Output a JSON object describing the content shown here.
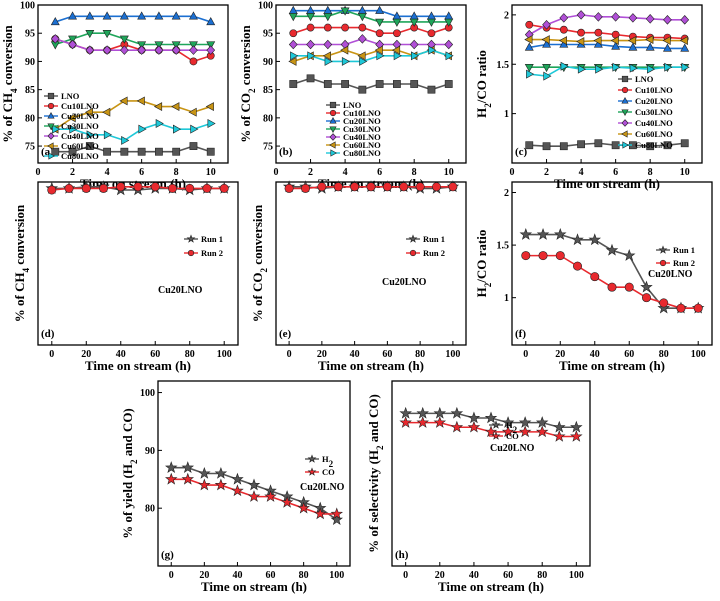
{
  "chart_data": [
    {
      "id": "a",
      "type": "line",
      "title": "",
      "panel_letter": "(a)",
      "xlabel": "Time on stream (h)",
      "ylabel": "% of CH4 conversion",
      "xlim": [
        0,
        11
      ],
      "ylim": [
        72,
        100
      ],
      "xticks": [
        0,
        2,
        4,
        6,
        8,
        10
      ],
      "yticks": [
        75,
        80,
        85,
        90,
        95,
        100
      ],
      "legend_pos": "bottom-left",
      "annotation": "",
      "series": [
        {
          "name": "LNO",
          "color": "#555555",
          "marker": "square",
          "x": [
            1,
            2,
            3,
            4,
            5,
            6,
            7,
            8,
            9,
            10
          ],
          "values": [
            74,
            74,
            75,
            74,
            74,
            74,
            74,
            74,
            75,
            74
          ]
        },
        {
          "name": "Cu10LNO",
          "color": "#e8292e",
          "marker": "circle",
          "x": [
            1,
            2,
            3,
            4,
            5,
            6,
            7,
            8,
            9,
            10
          ],
          "values": [
            94,
            93,
            92,
            92,
            93,
            92,
            92,
            92,
            90,
            91
          ]
        },
        {
          "name": "Cu20LNO",
          "color": "#1b6fd1",
          "marker": "triangle-up",
          "x": [
            1,
            2,
            3,
            4,
            5,
            6,
            7,
            8,
            9,
            10
          ],
          "values": [
            97,
            98,
            98,
            98,
            98,
            98,
            98,
            98,
            98,
            97
          ]
        },
        {
          "name": "Cu30LNO",
          "color": "#1fa55a",
          "marker": "triangle-down",
          "x": [
            1,
            2,
            3,
            4,
            5,
            6,
            7,
            8,
            9,
            10
          ],
          "values": [
            93,
            94,
            95,
            95,
            94,
            93,
            93,
            93,
            93,
            93
          ]
        },
        {
          "name": "Cu40LNO",
          "color": "#b04fd6",
          "marker": "diamond",
          "x": [
            1,
            2,
            3,
            4,
            5,
            6,
            7,
            8,
            9,
            10
          ],
          "values": [
            94,
            93,
            92,
            92,
            92,
            92,
            92,
            92,
            92,
            92
          ]
        },
        {
          "name": "Cu60LNO",
          "color": "#c89414",
          "marker": "triangle-left",
          "x": [
            1,
            2,
            3,
            4,
            5,
            6,
            7,
            8,
            9,
            10
          ],
          "values": [
            78,
            80,
            81,
            81,
            83,
            83,
            82,
            82,
            81,
            82
          ]
        },
        {
          "name": "Cu80LNO",
          "color": "#1ec8d8",
          "marker": "triangle-right",
          "x": [
            1,
            2,
            3,
            4,
            5,
            6,
            7,
            8,
            9,
            10
          ],
          "values": [
            78,
            78,
            77,
            77,
            76,
            78,
            79,
            78,
            78,
            79
          ]
        }
      ]
    },
    {
      "id": "b",
      "type": "line",
      "title": "",
      "panel_letter": "(b)",
      "xlabel": "Time on stream (h)",
      "ylabel": "% of CO2 conversion",
      "xlim": [
        0,
        11
      ],
      "ylim": [
        72,
        100
      ],
      "xticks": [
        0,
        2,
        4,
        6,
        8,
        10
      ],
      "yticks": [
        75,
        80,
        85,
        90,
        95,
        100
      ],
      "legend_pos": "bottom-center",
      "annotation": "",
      "series": [
        {
          "name": "LNO",
          "color": "#555555",
          "marker": "square",
          "x": [
            1,
            2,
            3,
            4,
            5,
            6,
            7,
            8,
            9,
            10
          ],
          "values": [
            86,
            87,
            86,
            86,
            85,
            86,
            86,
            86,
            85,
            86
          ]
        },
        {
          "name": "Cu10LNO",
          "color": "#e8292e",
          "marker": "circle",
          "x": [
            1,
            2,
            3,
            4,
            5,
            6,
            7,
            8,
            9,
            10
          ],
          "values": [
            95,
            96,
            96,
            96,
            96,
            95,
            95,
            96,
            95,
            96
          ]
        },
        {
          "name": "Cu20LNO",
          "color": "#1b6fd1",
          "marker": "triangle-up",
          "x": [
            1,
            2,
            3,
            4,
            5,
            6,
            7,
            8,
            9,
            10
          ],
          "values": [
            99,
            99,
            99,
            99,
            99,
            99,
            98,
            98,
            98,
            98
          ]
        },
        {
          "name": "Cu30LNO",
          "color": "#1fa55a",
          "marker": "triangle-down",
          "x": [
            1,
            2,
            3,
            4,
            5,
            6,
            7,
            8,
            9,
            10
          ],
          "values": [
            98,
            98,
            98,
            99,
            98,
            97,
            97,
            97,
            97,
            97
          ]
        },
        {
          "name": "Cu40LNO",
          "color": "#b04fd6",
          "marker": "diamond",
          "x": [
            1,
            2,
            3,
            4,
            5,
            6,
            7,
            8,
            9,
            10
          ],
          "values": [
            93,
            93,
            93,
            93,
            94,
            93,
            93,
            93,
            93,
            93
          ]
        },
        {
          "name": "Cu60LNO",
          "color": "#c89414",
          "marker": "triangle-left",
          "x": [
            1,
            2,
            3,
            4,
            5,
            6,
            7,
            8,
            9,
            10
          ],
          "values": [
            90,
            91,
            91,
            92,
            91,
            92,
            92,
            91,
            92,
            91
          ]
        },
        {
          "name": "Cu80LNO",
          "color": "#1ec8d8",
          "marker": "triangle-right",
          "x": [
            1,
            2,
            3,
            4,
            5,
            6,
            7,
            8,
            9,
            10
          ],
          "values": [
            91,
            91,
            90,
            90,
            90,
            91,
            91,
            91,
            92,
            91
          ]
        }
      ]
    },
    {
      "id": "c",
      "type": "line",
      "title": "",
      "panel_letter": "(c)",
      "xlabel": "Time on stream (h)",
      "ylabel": "H2/CO ratio",
      "xlim": [
        0,
        11
      ],
      "ylim": [
        0.5,
        2.1
      ],
      "xticks": [
        0,
        2,
        4,
        6,
        8,
        10
      ],
      "yticks": [
        1.0,
        1.5,
        2.0
      ],
      "legend_pos": "bottom-center",
      "annotation": "",
      "series": [
        {
          "name": "LNO",
          "color": "#555555",
          "marker": "square",
          "x": [
            1,
            2,
            3,
            4,
            5,
            6,
            7,
            8,
            9,
            10
          ],
          "values": [
            0.68,
            0.67,
            0.67,
            0.69,
            0.7,
            0.68,
            0.68,
            0.67,
            0.68,
            0.7
          ]
        },
        {
          "name": "Cu10LNO",
          "color": "#e8292e",
          "marker": "circle",
          "x": [
            1,
            2,
            3,
            4,
            5,
            6,
            7,
            8,
            9,
            10
          ],
          "values": [
            1.9,
            1.87,
            1.85,
            1.82,
            1.82,
            1.8,
            1.78,
            1.77,
            1.77,
            1.76
          ]
        },
        {
          "name": "Cu20LNO",
          "color": "#1b6fd1",
          "marker": "triangle-up",
          "x": [
            1,
            2,
            3,
            4,
            5,
            6,
            7,
            8,
            9,
            10
          ],
          "values": [
            1.67,
            1.7,
            1.7,
            1.7,
            1.7,
            1.68,
            1.67,
            1.67,
            1.66,
            1.66
          ]
        },
        {
          "name": "Cu30LNO",
          "color": "#1fa55a",
          "marker": "triangle-down",
          "x": [
            1,
            2,
            3,
            4,
            5,
            6,
            7,
            8,
            9,
            10
          ],
          "values": [
            1.47,
            1.47,
            1.47,
            1.47,
            1.47,
            1.47,
            1.47,
            1.47,
            1.47,
            1.47
          ]
        },
        {
          "name": "Cu40LNO",
          "color": "#b04fd6",
          "marker": "diamond",
          "x": [
            1,
            2,
            3,
            4,
            5,
            6,
            7,
            8,
            9,
            10
          ],
          "values": [
            1.8,
            1.9,
            1.97,
            2.0,
            1.98,
            1.98,
            1.97,
            1.96,
            1.95,
            1.95
          ]
        },
        {
          "name": "Cu60LNO",
          "color": "#c89414",
          "marker": "triangle-left",
          "x": [
            1,
            2,
            3,
            4,
            5,
            6,
            7,
            8,
            9,
            10
          ],
          "values": [
            1.75,
            1.75,
            1.74,
            1.73,
            1.74,
            1.74,
            1.74,
            1.75,
            1.74,
            1.74
          ]
        },
        {
          "name": "Cu80LNO",
          "color": "#1ec8d8",
          "marker": "triangle-right",
          "x": [
            1,
            2,
            3,
            4,
            5,
            6,
            7,
            8,
            9,
            10
          ],
          "values": [
            1.4,
            1.38,
            1.48,
            1.45,
            1.45,
            1.47,
            1.46,
            1.45,
            1.47,
            1.47
          ]
        }
      ]
    },
    {
      "id": "d",
      "type": "line",
      "title": "",
      "panel_letter": "(d)",
      "xlabel": "Time on stream (h)",
      "ylabel": "% of CH4 conversion",
      "xlim": [
        -8,
        108
      ],
      "ylim": [
        0,
        102
      ],
      "xticks": [
        0,
        20,
        40,
        60,
        80,
        100
      ],
      "yticks": [],
      "legend_pos": "middle-right",
      "annotation": "Cu20LNO",
      "series": [
        {
          "name": "Run 1",
          "color": "#555555",
          "marker": "star",
          "x": [
            0,
            10,
            20,
            30,
            40,
            50,
            60,
            70,
            80,
            90,
            100
          ],
          "values": [
            98,
            98,
            99,
            99,
            97,
            97,
            98,
            98,
            97,
            98,
            98
          ]
        },
        {
          "name": "Run 2",
          "color": "#e8292e",
          "marker": "circle",
          "x": [
            0,
            10,
            20,
            30,
            40,
            50,
            60,
            70,
            80,
            90,
            100
          ],
          "values": [
            97,
            98,
            98,
            98,
            99,
            99,
            99,
            98,
            98,
            98,
            98
          ]
        }
      ]
    },
    {
      "id": "e",
      "type": "line",
      "title": "",
      "panel_letter": "(e)",
      "xlabel": "Time on stream (h)",
      "ylabel": "% of CO2 conversion",
      "xlim": [
        -8,
        108
      ],
      "ylim": [
        0,
        102
      ],
      "xticks": [
        0,
        20,
        40,
        60,
        80,
        100
      ],
      "yticks": [],
      "legend_pos": "middle-right",
      "annotation": "Cu20LNO",
      "series": [
        {
          "name": "Run 1",
          "color": "#555555",
          "marker": "star",
          "x": [
            0,
            10,
            20,
            30,
            40,
            50,
            60,
            70,
            80,
            90,
            100
          ],
          "values": [
            99,
            99,
            98,
            99,
            99,
            99,
            99,
            99,
            98,
            98,
            99
          ]
        },
        {
          "name": "Run 2",
          "color": "#e8292e",
          "marker": "circle",
          "x": [
            0,
            10,
            20,
            30,
            40,
            50,
            60,
            70,
            80,
            90,
            100
          ],
          "values": [
            98,
            98,
            99,
            99,
            99,
            99,
            99,
            99,
            99,
            99,
            99
          ]
        }
      ]
    },
    {
      "id": "f",
      "type": "line",
      "title": "",
      "panel_letter": "(f)",
      "xlabel": "Time on stream (h)",
      "ylabel": "H2/CO ratio",
      "xlim": [
        -8,
        108
      ],
      "ylim": [
        0.55,
        2.1
      ],
      "xticks": [
        0,
        20,
        40,
        60,
        80,
        100
      ],
      "yticks": [
        1.0,
        1.5,
        2.0
      ],
      "legend_pos": "top-right",
      "annotation": "Cu20LNO",
      "series": [
        {
          "name": "Run 1",
          "color": "#555555",
          "marker": "star",
          "x": [
            0,
            10,
            20,
            30,
            40,
            50,
            60,
            70,
            80,
            90,
            100
          ],
          "values": [
            1.6,
            1.6,
            1.6,
            1.55,
            1.55,
            1.45,
            1.4,
            1.1,
            0.9,
            0.9,
            0.9
          ]
        },
        {
          "name": "Run 2",
          "color": "#e8292e",
          "marker": "circle",
          "x": [
            0,
            10,
            20,
            30,
            40,
            50,
            60,
            70,
            80,
            90,
            100
          ],
          "values": [
            1.4,
            1.4,
            1.4,
            1.3,
            1.2,
            1.1,
            1.1,
            1.0,
            0.95,
            0.9,
            0.9
          ]
        }
      ]
    },
    {
      "id": "g",
      "type": "line",
      "title": "",
      "panel_letter": "(g)",
      "xlabel": "Time on stream (h)",
      "ylabel": "% of yield (H2 and CO)",
      "xlim": [
        -8,
        108
      ],
      "ylim": [
        70,
        102
      ],
      "xticks": [
        0,
        20,
        40,
        60,
        80,
        100
      ],
      "yticks": [
        80,
        90,
        100
      ],
      "legend_pos": "top-right",
      "annotation": "Cu20LNO",
      "series": [
        {
          "name": "H2",
          "color": "#555555",
          "marker": "star",
          "x": [
            0,
            10,
            20,
            30,
            40,
            50,
            60,
            70,
            80,
            90,
            100
          ],
          "values": [
            87,
            87,
            86,
            86,
            85,
            84,
            83,
            82,
            81,
            80,
            78
          ]
        },
        {
          "name": "CO",
          "color": "#e8292e",
          "marker": "star",
          "x": [
            0,
            10,
            20,
            30,
            40,
            50,
            60,
            70,
            80,
            90,
            100
          ],
          "values": [
            85,
            85,
            84,
            84,
            83,
            82,
            82,
            81,
            80,
            79,
            79
          ]
        }
      ]
    },
    {
      "id": "h",
      "type": "line",
      "title": "",
      "panel_letter": "(h)",
      "xlabel": "Time on stream (h)",
      "ylabel": "% of selectivity (H2 and CO)",
      "xlim": [
        -8,
        108
      ],
      "ylim": [
        60,
        100
      ],
      "xticks": [
        0,
        20,
        40,
        60,
        80,
        100
      ],
      "yticks": [],
      "legend_pos": "top-right",
      "annotation": "Cu20LNO",
      "series": [
        {
          "name": "H2",
          "color": "#555555",
          "marker": "star",
          "x": [
            0,
            10,
            20,
            30,
            40,
            50,
            60,
            70,
            80,
            90,
            100
          ],
          "values": [
            93,
            93,
            93,
            93,
            92,
            92,
            91,
            91,
            91,
            90,
            90
          ]
        },
        {
          "name": "CO",
          "color": "#e8292e",
          "marker": "star",
          "x": [
            0,
            10,
            20,
            30,
            40,
            50,
            60,
            70,
            80,
            90,
            100
          ],
          "values": [
            91,
            91,
            91,
            90,
            90,
            89,
            89,
            89,
            89,
            88,
            88
          ]
        }
      ]
    }
  ]
}
